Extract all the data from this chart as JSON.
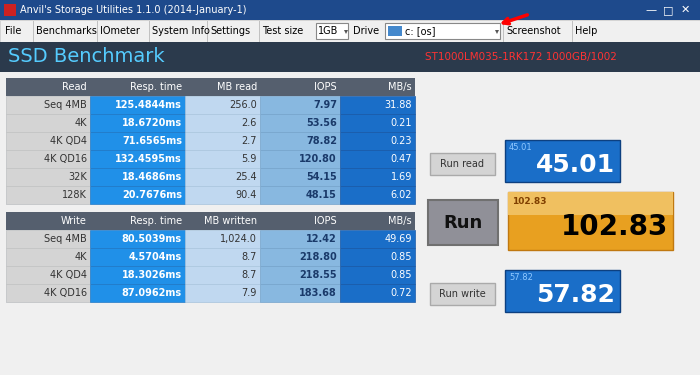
{
  "title_bar": "Anvil's Storage Utilities 1.1.0 (2014-January-1)",
  "section_title": "SSD Benchmark",
  "drive_label": "ST1000LM035-1RK172 1000GB/1002",
  "read_rows": [
    {
      "label": "Seq 4MB",
      "resp": "125.4844ms",
      "mb": "256.0",
      "iops": "7.97",
      "mbs": "31.88"
    },
    {
      "label": "4K",
      "resp": "18.6720ms",
      "mb": "2.6",
      "iops": "53.56",
      "mbs": "0.21"
    },
    {
      "label": "4K QD4",
      "resp": "71.6565ms",
      "mb": "2.7",
      "iops": "78.82",
      "mbs": "0.23"
    },
    {
      "label": "4K QD16",
      "resp": "132.4595ms",
      "mb": "5.9",
      "iops": "120.80",
      "mbs": "0.47"
    },
    {
      "label": "32K",
      "resp": "18.4686ms",
      "mb": "25.4",
      "iops": "54.15",
      "mbs": "1.69"
    },
    {
      "label": "128K",
      "resp": "20.7676ms",
      "mb": "90.4",
      "iops": "48.15",
      "mbs": "6.02"
    }
  ],
  "write_rows": [
    {
      "label": "Seq 4MB",
      "resp": "80.5039ms",
      "mb": "1,024.0",
      "iops": "12.42",
      "mbs": "49.69"
    },
    {
      "label": "4K",
      "resp": "4.5704ms",
      "mb": "8.7",
      "iops": "218.80",
      "mbs": "0.85"
    },
    {
      "label": "4K QD4",
      "resp": "18.3026ms",
      "mb": "8.7",
      "iops": "218.55",
      "mbs": "0.85"
    },
    {
      "label": "4K QD16",
      "resp": "87.0962ms",
      "mb": "7.9",
      "iops": "183.68",
      "mbs": "0.72"
    }
  ],
  "col_headers_read": [
    "Read",
    "Resp. time",
    "MB read",
    "IOPS",
    "MB/s"
  ],
  "col_headers_write": [
    "Write",
    "Resp. time",
    "MB written",
    "IOPS",
    "MB/s"
  ],
  "score_read_sub": "45.01",
  "score_read_val": "45.01",
  "score_run_sub": "102.83",
  "score_run_val": "102.83",
  "score_write_sub": "57.82",
  "score_write_val": "57.82",
  "titlebar_bg": "#2060a8",
  "menu_bg": "#f0f0f0",
  "section_bg": "#2b3a4c",
  "header_bg": "#555f6e",
  "row_label_bg": "#d8d8d8",
  "row_resp_bg": "#2196f3",
  "row_mb_bg": "#c8ddf0",
  "row_iops_bg": "#90c0e8",
  "row_mbs_bg": "#1a6ec8",
  "row_odd_bg": "#e8f0f8",
  "row_even_bg": "#d8e8f5",
  "score_blue_bg": "#1a6ec8",
  "score_orange_bg": "#e8a020",
  "run_btn_bg": "#9090a0",
  "small_btn_bg": "#d8d8d8"
}
